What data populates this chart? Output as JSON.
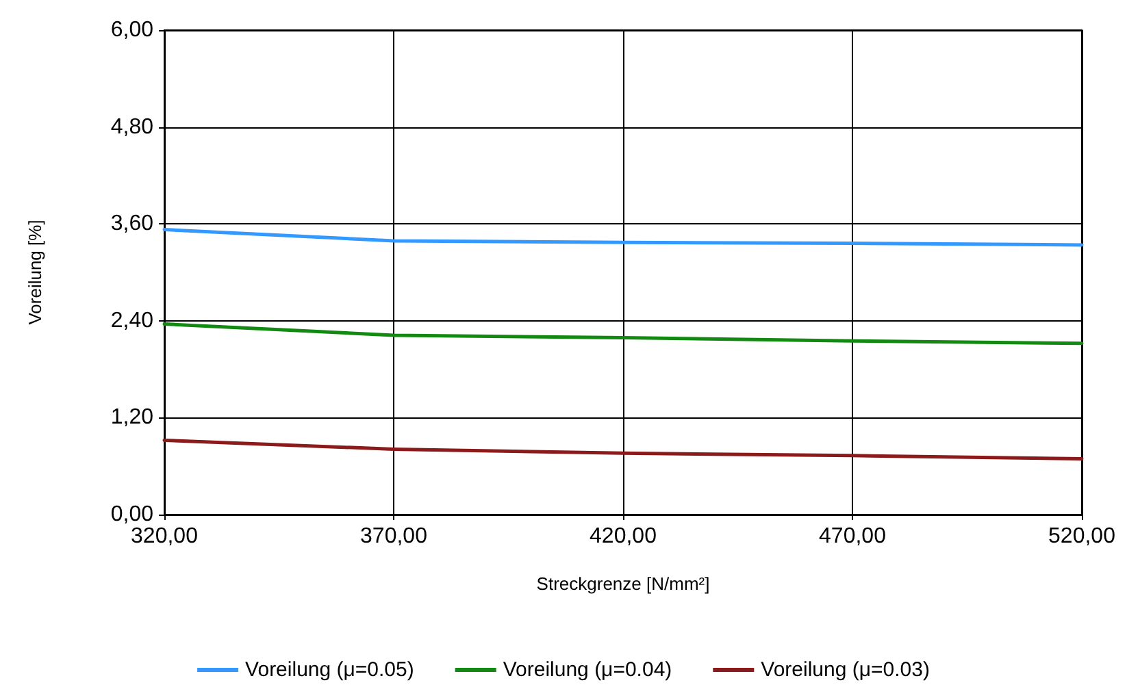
{
  "chart_data": {
    "type": "line",
    "xlabel": "Streckgrenze [N/mm²]",
    "ylabel": "Voreilung [%]",
    "x": [
      320,
      370,
      420,
      470,
      520
    ],
    "series": [
      {
        "name": "Voreilung (μ=0.05)",
        "color": "#3399ff",
        "values": [
          3.53,
          3.39,
          3.37,
          3.36,
          3.34
        ]
      },
      {
        "name": "Voreilung (μ=0.04)",
        "color": "#128a12",
        "values": [
          2.36,
          2.22,
          2.19,
          2.15,
          2.12
        ]
      },
      {
        "name": "Voreilung (μ=0.03)",
        "color": "#8b1a1a",
        "values": [
          0.92,
          0.81,
          0.76,
          0.73,
          0.69
        ]
      }
    ],
    "xlim": [
      320,
      520
    ],
    "xticks": [
      {
        "value": 320,
        "label": "320,00"
      },
      {
        "value": 370,
        "label": "370,00"
      },
      {
        "value": 420,
        "label": "420,00"
      },
      {
        "value": 470,
        "label": "470,00"
      },
      {
        "value": 520,
        "label": "520,00"
      }
    ],
    "ylim": [
      0,
      6
    ],
    "yticks": [
      {
        "value": 0,
        "label": "0,00"
      },
      {
        "value": 1.2,
        "label": "1,20"
      },
      {
        "value": 2.4,
        "label": "2,40"
      },
      {
        "value": 3.6,
        "label": "3,60"
      },
      {
        "value": 4.8,
        "label": "4,80"
      },
      {
        "value": 6,
        "label": "6,00"
      }
    ],
    "grid": true,
    "legend": "bottom",
    "marker": "none",
    "line_style": "solid"
  }
}
